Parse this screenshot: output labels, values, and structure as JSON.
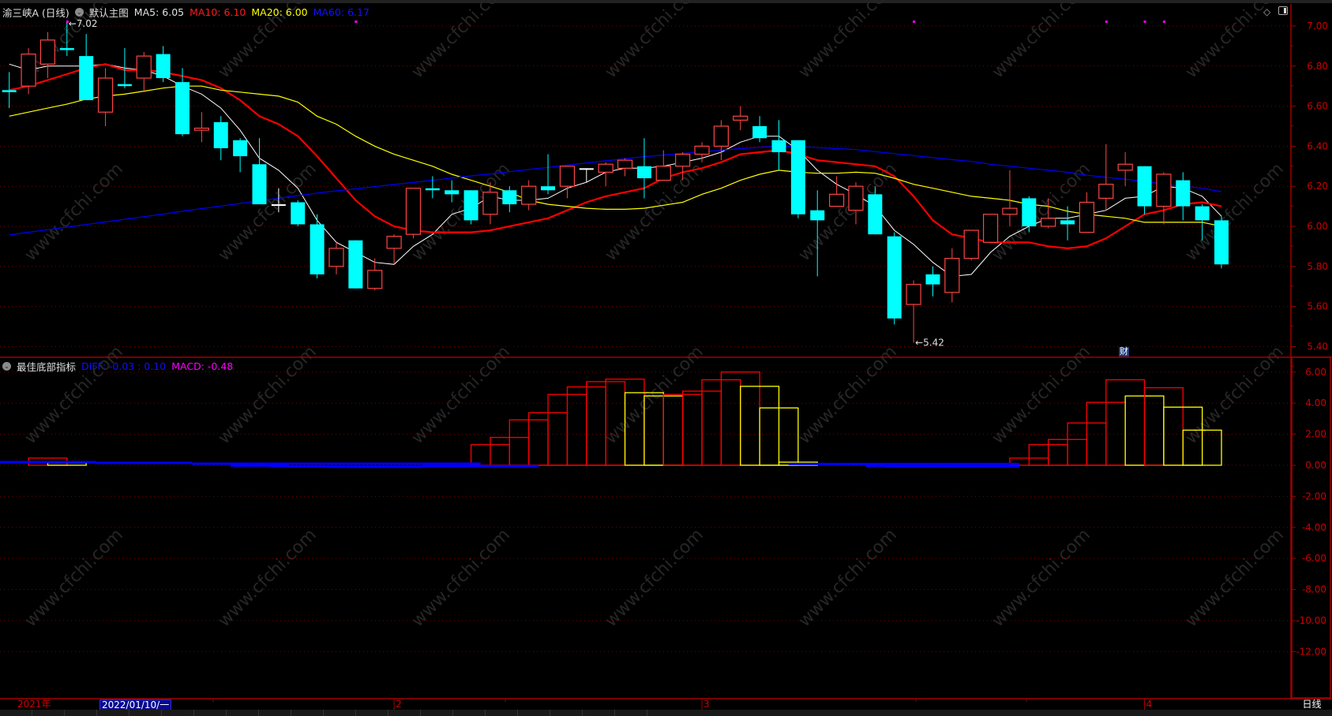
{
  "header": {
    "title": "渝三峡A (日线)",
    "main_chart_label": "默认主图",
    "ma5": "MA5: 6.05",
    "ma10": "MA10: 6.10",
    "ma20": "MA20: 6.00",
    "ma60": "MA60: 6.17"
  },
  "indicator_header": {
    "name": "最佳底部指标",
    "diff": "DIFF: -0.03 : 0.10",
    "macd": "MACD: -0.48"
  },
  "icons": {
    "dropdown": "chevron-down-circle",
    "draw": "diamond-icon",
    "panel": "panel-toggle-icon"
  },
  "date_axis": {
    "year_label": "2021年",
    "cursor_date": "2022/01/10/一",
    "month_labels": [
      {
        "label": "2",
        "candle": 20
      },
      {
        "label": "3",
        "candle": 36
      },
      {
        "label": "4",
        "candle": 59
      }
    ],
    "period": "日线"
  },
  "finance_marker": "财",
  "watermark": "www.cfchi.com",
  "colors": {
    "up": "#ff4444",
    "down": "#00ffff",
    "doji": "#ffffff",
    "ma5": "#ffffff",
    "ma10": "#ff0000",
    "ma20": "#ffff00",
    "ma60": "#0000ff",
    "axis": "#cc0000",
    "macd_up": "#ff0000",
    "macd_down": "#ffff00",
    "diff": "#0000ff"
  },
  "chart_data": [
    {
      "type": "candlestick",
      "ylim": [
        5.4,
        7.0
      ],
      "yticks": [
        "7.00",
        "6.80",
        "6.60",
        "6.40",
        "6.20",
        "6.00",
        "5.80",
        "5.60",
        "5.40"
      ],
      "grid": true,
      "annotations": [
        {
          "label": "7.02",
          "candle": 3,
          "value": 7.02
        },
        {
          "label": "5.42",
          "candle": 47,
          "value": 5.42
        }
      ],
      "ohlc": [
        [
          6.68,
          6.77,
          6.59,
          6.67
        ],
        [
          6.7,
          6.89,
          6.66,
          6.86
        ],
        [
          6.81,
          6.97,
          6.74,
          6.93
        ],
        [
          6.89,
          7.02,
          6.85,
          6.88
        ],
        [
          6.85,
          6.96,
          6.63,
          6.63
        ],
        [
          6.57,
          6.79,
          6.5,
          6.74
        ],
        [
          6.71,
          6.89,
          6.69,
          6.7
        ],
        [
          6.74,
          6.87,
          6.67,
          6.85
        ],
        [
          6.86,
          6.9,
          6.72,
          6.74
        ],
        [
          6.72,
          6.79,
          6.45,
          6.46
        ],
        [
          6.48,
          6.57,
          6.42,
          6.49
        ],
        [
          6.52,
          6.55,
          6.33,
          6.39
        ],
        [
          6.43,
          6.44,
          6.27,
          6.35
        ],
        [
          6.31,
          6.44,
          6.11,
          6.11
        ],
        [
          6.11,
          6.19,
          6.07,
          6.11
        ],
        [
          6.12,
          6.13,
          6.0,
          6.01
        ],
        [
          6.01,
          6.06,
          5.74,
          5.76
        ],
        [
          5.8,
          5.92,
          5.76,
          5.89
        ],
        [
          5.93,
          5.93,
          5.69,
          5.69
        ],
        [
          5.69,
          5.84,
          5.68,
          5.78
        ],
        [
          5.89,
          5.96,
          5.81,
          5.95
        ],
        [
          5.96,
          6.19,
          5.94,
          6.19
        ],
        [
          6.19,
          6.25,
          6.14,
          6.18
        ],
        [
          6.18,
          6.23,
          6.12,
          6.16
        ],
        [
          6.18,
          6.18,
          6.01,
          6.03
        ],
        [
          6.06,
          6.22,
          6.01,
          6.17
        ],
        [
          6.18,
          6.2,
          6.07,
          6.11
        ],
        [
          6.11,
          6.23,
          6.08,
          6.2
        ],
        [
          6.2,
          6.36,
          6.16,
          6.18
        ],
        [
          6.2,
          6.3,
          6.14,
          6.3
        ],
        [
          6.29,
          6.29,
          6.22,
          6.29
        ],
        [
          6.27,
          6.32,
          6.2,
          6.31
        ],
        [
          6.29,
          6.34,
          6.25,
          6.33
        ],
        [
          6.3,
          6.44,
          6.14,
          6.24
        ],
        [
          6.23,
          6.38,
          6.23,
          6.3
        ],
        [
          6.3,
          6.37,
          6.23,
          6.36
        ],
        [
          6.36,
          6.42,
          6.32,
          6.4
        ],
        [
          6.4,
          6.53,
          6.33,
          6.5
        ],
        [
          6.53,
          6.6,
          6.48,
          6.55
        ],
        [
          6.5,
          6.55,
          6.42,
          6.44
        ],
        [
          6.43,
          6.53,
          6.28,
          6.37
        ],
        [
          6.43,
          6.43,
          6.04,
          6.06
        ],
        [
          6.08,
          6.18,
          5.75,
          6.03
        ],
        [
          6.1,
          6.25,
          6.1,
          6.16
        ],
        [
          6.08,
          6.22,
          6.01,
          6.2
        ],
        [
          6.16,
          6.2,
          5.96,
          5.96
        ],
        [
          5.95,
          5.97,
          5.51,
          5.54
        ],
        [
          5.61,
          5.73,
          5.42,
          5.71
        ],
        [
          5.76,
          5.8,
          5.65,
          5.71
        ],
        [
          5.67,
          5.89,
          5.62,
          5.84
        ],
        [
          5.84,
          5.98,
          5.83,
          5.98
        ],
        [
          5.92,
          6.06,
          5.92,
          6.06
        ],
        [
          6.06,
          6.28,
          6.0,
          6.09
        ],
        [
          6.14,
          6.15,
          5.97,
          6.0
        ],
        [
          6.0,
          6.14,
          5.99,
          6.04
        ],
        [
          6.03,
          6.1,
          5.93,
          6.01
        ],
        [
          5.97,
          6.17,
          5.97,
          6.12
        ],
        [
          6.14,
          6.41,
          6.08,
          6.21
        ],
        [
          6.28,
          6.37,
          6.2,
          6.31
        ],
        [
          6.3,
          6.3,
          6.06,
          6.1
        ],
        [
          6.1,
          6.27,
          6.01,
          6.26
        ],
        [
          6.23,
          6.27,
          6.03,
          6.1
        ],
        [
          6.1,
          6.11,
          5.93,
          6.03
        ],
        [
          6.03,
          6.05,
          5.79,
          5.81
        ]
      ],
      "series": [
        {
          "name": "MA5",
          "values": [
            6.81,
            6.78,
            6.8,
            6.8,
            6.8,
            6.81,
            6.79,
            6.78,
            6.75,
            6.7,
            6.66,
            6.59,
            6.48,
            6.34,
            6.28,
            6.19,
            6.03,
            5.92,
            5.87,
            5.82,
            5.81,
            5.9,
            5.96,
            6.06,
            6.09,
            6.15,
            6.13,
            6.13,
            6.14,
            6.19,
            6.22,
            6.27,
            6.29,
            6.29,
            6.3,
            6.32,
            6.34,
            6.37,
            6.42,
            6.45,
            6.45,
            6.38,
            6.28,
            6.21,
            6.16,
            6.1,
            5.98,
            5.91,
            5.82,
            5.75,
            5.76,
            5.87,
            5.95,
            6.0,
            6.04,
            6.04,
            6.06,
            6.08,
            6.14,
            6.15,
            6.2,
            6.19,
            6.15,
            6.05
          ]
        },
        {
          "name": "MA10",
          "values": [
            6.68,
            6.7,
            6.73,
            6.76,
            6.79,
            6.81,
            6.78,
            6.78,
            6.77,
            6.75,
            6.73,
            6.69,
            6.63,
            6.55,
            6.51,
            6.45,
            6.35,
            6.24,
            6.13,
            6.05,
            6.0,
            5.98,
            5.97,
            5.97,
            5.97,
            5.98,
            6.0,
            6.02,
            6.04,
            6.08,
            6.12,
            6.15,
            6.17,
            6.19,
            6.24,
            6.27,
            6.29,
            6.32,
            6.36,
            6.37,
            6.38,
            6.36,
            6.33,
            6.32,
            6.31,
            6.3,
            6.25,
            6.15,
            6.03,
            5.96,
            5.94,
            5.92,
            5.92,
            5.92,
            5.9,
            5.89,
            5.9,
            5.94,
            6.0,
            6.06,
            6.08,
            6.11,
            6.12,
            6.1
          ]
        },
        {
          "name": "MA20",
          "values": [
            6.55,
            6.57,
            6.59,
            6.61,
            6.635,
            6.65,
            6.66,
            6.675,
            6.69,
            6.7,
            6.7,
            6.68,
            6.67,
            6.66,
            6.65,
            6.62,
            6.55,
            6.51,
            6.45,
            6.4,
            6.36,
            6.33,
            6.3,
            6.26,
            6.23,
            6.2,
            6.17,
            6.13,
            6.11,
            6.1,
            6.09,
            6.085,
            6.085,
            6.09,
            6.105,
            6.12,
            6.16,
            6.19,
            6.23,
            6.26,
            6.28,
            6.27,
            6.265,
            6.265,
            6.27,
            6.265,
            6.24,
            6.21,
            6.19,
            6.17,
            6.15,
            6.14,
            6.13,
            6.11,
            6.1,
            6.075,
            6.06,
            6.05,
            6.04,
            6.02,
            6.02,
            6.02,
            6.02,
            6.0
          ]
        },
        {
          "name": "MA60",
          "values": [
            5.957,
            5.97,
            5.983,
            5.996,
            6.009,
            6.022,
            6.035,
            6.048,
            6.061,
            6.075,
            6.088,
            6.101,
            6.114,
            6.127,
            6.14,
            6.153,
            6.166,
            6.177,
            6.187,
            6.198,
            6.209,
            6.219,
            6.23,
            6.241,
            6.252,
            6.262,
            6.273,
            6.284,
            6.294,
            6.305,
            6.316,
            6.327,
            6.337,
            6.348,
            6.356,
            6.364,
            6.372,
            6.38,
            6.388,
            6.394,
            6.4,
            6.398,
            6.393,
            6.388,
            6.383,
            6.373,
            6.363,
            6.353,
            6.343,
            6.333,
            6.324,
            6.31,
            6.3,
            6.29,
            6.28,
            6.27,
            6.255,
            6.245,
            6.235,
            6.225,
            6.21,
            6.2,
            6.19,
            6.173
          ]
        }
      ]
    },
    {
      "type": "bar",
      "ylim": [
        -14,
        7
      ],
      "yticks": [
        "6.00",
        "4.00",
        "2.00",
        "0.00",
        "-2.00",
        "-4.00",
        "-6.00",
        "-8.00",
        "-10.00",
        "-12.00"
      ],
      "grid": true,
      "macd": [
        null,
        null,
        0.46,
        0.15,
        null,
        null,
        null,
        null,
        null,
        null,
        null,
        null,
        null,
        null,
        null,
        null,
        null,
        null,
        null,
        null,
        null,
        null,
        null,
        null,
        null,
        1.33,
        1.79,
        2.92,
        3.38,
        4.56,
        5.04,
        5.38,
        5.54,
        4.67,
        4.46,
        4.56,
        4.77,
        5.5,
        6.0,
        5.08,
        3.69,
        0.2,
        null,
        null,
        null,
        null,
        null,
        null,
        null,
        null,
        null,
        null,
        null,
        0.46,
        1.33,
        1.66,
        2.72,
        4.05,
        5.5,
        4.46,
        4.99,
        3.74,
        2.26,
        null
      ],
      "diff_upper": [
        0.2,
        0.2,
        0.2,
        0.2,
        0.2,
        0.15,
        0.15,
        0.15,
        0.15,
        0.15,
        0.1,
        0.1,
        0.1,
        0.1,
        0.1,
        0.1,
        0.1,
        0.1,
        0.1,
        0.1,
        0.1,
        0.1,
        0.1,
        0.1,
        0.1,
        null,
        null,
        null,
        null,
        null,
        null,
        null,
        null,
        null,
        null,
        null,
        null,
        null,
        null,
        null,
        null,
        0.08,
        0.08,
        0.08,
        0.08,
        0.08,
        0.08,
        0.08,
        0.08,
        0.08,
        0.08,
        0.08,
        0.08,
        null,
        null,
        null,
        null,
        null,
        null,
        null,
        null,
        null,
        null,
        null
      ],
      "diff_lower": [
        null,
        null,
        null,
        null,
        null,
        null,
        null,
        null,
        null,
        null,
        null,
        null,
        -0.02,
        -0.02,
        -0.05,
        -0.08,
        -0.08,
        -0.1,
        -0.1,
        -0.1,
        -0.1,
        -0.1,
        -0.06,
        -0.06,
        -0.06,
        -0.06,
        -0.06,
        -0.06,
        null,
        null,
        null,
        null,
        null,
        null,
        null,
        null,
        null,
        null,
        null,
        null,
        null,
        null,
        null,
        null,
        null,
        -0.03,
        -0.08,
        -0.08,
        -0.08,
        -0.08,
        -0.08,
        -0.08,
        -0.08,
        null,
        null,
        null,
        null,
        null,
        null,
        null,
        null,
        null,
        null,
        null
      ]
    }
  ]
}
